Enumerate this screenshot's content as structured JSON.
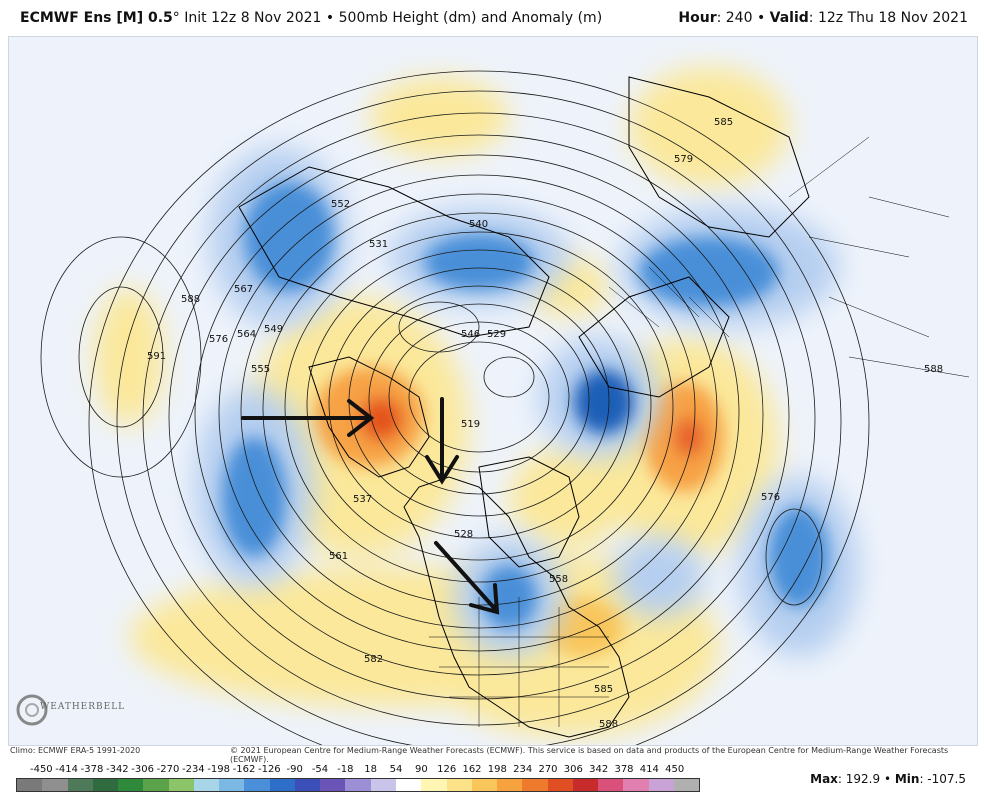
{
  "header": {
    "product": "ECMWF Ens [M] 0.5",
    "degree": "°",
    "init": " Init 12z 8 Nov 2021",
    "sep": " • ",
    "field": "500mb Height (dm) and Anomaly (m)",
    "hour_label": "Hour",
    "hour_value": ": 240 • ",
    "valid_label": "Valid",
    "valid_value": ": 12z Thu 18 Nov 2021"
  },
  "map": {
    "contour_labels": [
      "552",
      "540",
      "531",
      "519",
      "528",
      "537",
      "546",
      "555",
      "564",
      "567",
      "576",
      "588",
      "591",
      "561",
      "582",
      "585",
      "588",
      "579",
      "585",
      "576",
      "588",
      "549",
      "529",
      "558"
    ],
    "anomaly_colors": {
      "positive_strong": "#e4541c",
      "positive_mid": "#f7a245",
      "positive_weak": "#fbe89a",
      "negative_weak": "#b6cff0",
      "negative_mid": "#4a8fd8",
      "negative_strong": "#1d5fb7"
    }
  },
  "footer": {
    "climo": "Climo: ECMWF ERA-5 1991-2020",
    "copyright": "© 2021 European Centre for Medium-Range Weather Forecasts (ECMWF). This service is based on data and products of the European Centre for Medium-Range Weather Forecasts (ECMWF).",
    "logo": "WEATHERBELL"
  },
  "legend": {
    "ticks": [
      "-450",
      "-414",
      "-378",
      "-342",
      "-306",
      "-270",
      "-234",
      "-198",
      "-162",
      "-126",
      "-90",
      "-54",
      "-18",
      "18",
      "54",
      "90",
      "126",
      "162",
      "198",
      "234",
      "270",
      "306",
      "342",
      "378",
      "414",
      "450"
    ],
    "colors": [
      "#7a7a7a",
      "#8f8f8f",
      "#4f7a5a",
      "#2f6b3f",
      "#2e8a3a",
      "#5aa34a",
      "#8cc46a",
      "#a8d5e8",
      "#7cb8e4",
      "#4a8fd8",
      "#2d6fc8",
      "#3c4fb8",
      "#6a54b8",
      "#9c8fd6",
      "#c9c4ea",
      "#ffffff",
      "#fff6b3",
      "#fce38a",
      "#f9c65c",
      "#f5a23f",
      "#ee7a2e",
      "#e04f24",
      "#c72b2b",
      "#d9507a",
      "#e07fb0",
      "#c9a3d6",
      "#b0b0b0"
    ]
  },
  "maxmin": {
    "max_label": "Max",
    "max_value": ": 192.9 • ",
    "min_label": "Min",
    "min_value": ": -107.5"
  }
}
